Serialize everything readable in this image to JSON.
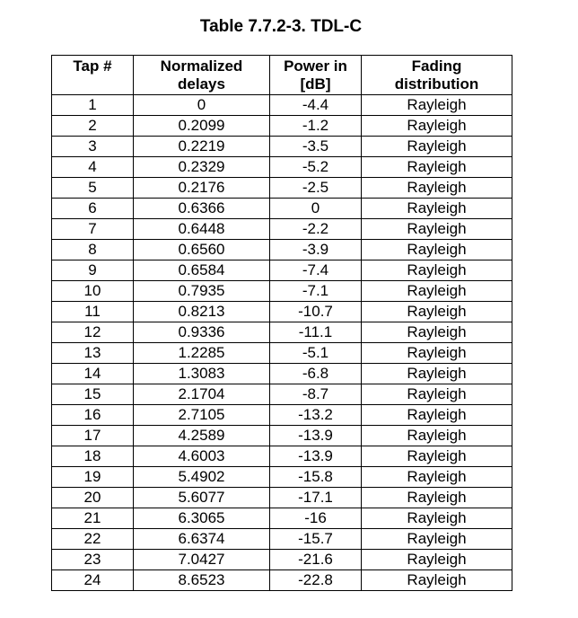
{
  "title": "Table 7.7.2-3. TDL-C",
  "headers": {
    "tap": "Tap #",
    "delay_line1": "Normalized",
    "delay_line2": "delays",
    "power_line1": "Power in",
    "power_line2": "[dB]",
    "fading_line1": "Fading",
    "fading_line2": "distribution"
  },
  "rows": [
    {
      "tap": "1",
      "delay": "0",
      "power": "-4.4",
      "fading": "Rayleigh"
    },
    {
      "tap": "2",
      "delay": "0.2099",
      "power": "-1.2",
      "fading": "Rayleigh"
    },
    {
      "tap": "3",
      "delay": "0.2219",
      "power": "-3.5",
      "fading": "Rayleigh"
    },
    {
      "tap": "4",
      "delay": "0.2329",
      "power": "-5.2",
      "fading": "Rayleigh"
    },
    {
      "tap": "5",
      "delay": "0.2176",
      "power": "-2.5",
      "fading": "Rayleigh"
    },
    {
      "tap": "6",
      "delay": "0.6366",
      "power": "0",
      "fading": "Rayleigh"
    },
    {
      "tap": "7",
      "delay": "0.6448",
      "power": "-2.2",
      "fading": "Rayleigh"
    },
    {
      "tap": "8",
      "delay": "0.6560",
      "power": "-3.9",
      "fading": "Rayleigh"
    },
    {
      "tap": "9",
      "delay": "0.6584",
      "power": "-7.4",
      "fading": "Rayleigh"
    },
    {
      "tap": "10",
      "delay": "0.7935",
      "power": "-7.1",
      "fading": "Rayleigh"
    },
    {
      "tap": "11",
      "delay": "0.8213",
      "power": "-10.7",
      "fading": "Rayleigh"
    },
    {
      "tap": "12",
      "delay": "0.9336",
      "power": "-11.1",
      "fading": "Rayleigh"
    },
    {
      "tap": "13",
      "delay": "1.2285",
      "power": "-5.1",
      "fading": "Rayleigh"
    },
    {
      "tap": "14",
      "delay": "1.3083",
      "power": "-6.8",
      "fading": "Rayleigh"
    },
    {
      "tap": "15",
      "delay": "2.1704",
      "power": "-8.7",
      "fading": "Rayleigh"
    },
    {
      "tap": "16",
      "delay": "2.7105",
      "power": "-13.2",
      "fading": "Rayleigh"
    },
    {
      "tap": "17",
      "delay": "4.2589",
      "power": "-13.9",
      "fading": "Rayleigh"
    },
    {
      "tap": "18",
      "delay": "4.6003",
      "power": "-13.9",
      "fading": "Rayleigh"
    },
    {
      "tap": "19",
      "delay": "5.4902",
      "power": "-15.8",
      "fading": "Rayleigh"
    },
    {
      "tap": "20",
      "delay": "5.6077",
      "power": "-17.1",
      "fading": "Rayleigh"
    },
    {
      "tap": "21",
      "delay": "6.3065",
      "power": "-16",
      "fading": "Rayleigh"
    },
    {
      "tap": "22",
      "delay": "6.6374",
      "power": "-15.7",
      "fading": "Rayleigh"
    },
    {
      "tap": "23",
      "delay": "7.0427",
      "power": "-21.6",
      "fading": "Rayleigh"
    },
    {
      "tap": "24",
      "delay": "8.6523",
      "power": "-22.8",
      "fading": "Rayleigh"
    }
  ]
}
